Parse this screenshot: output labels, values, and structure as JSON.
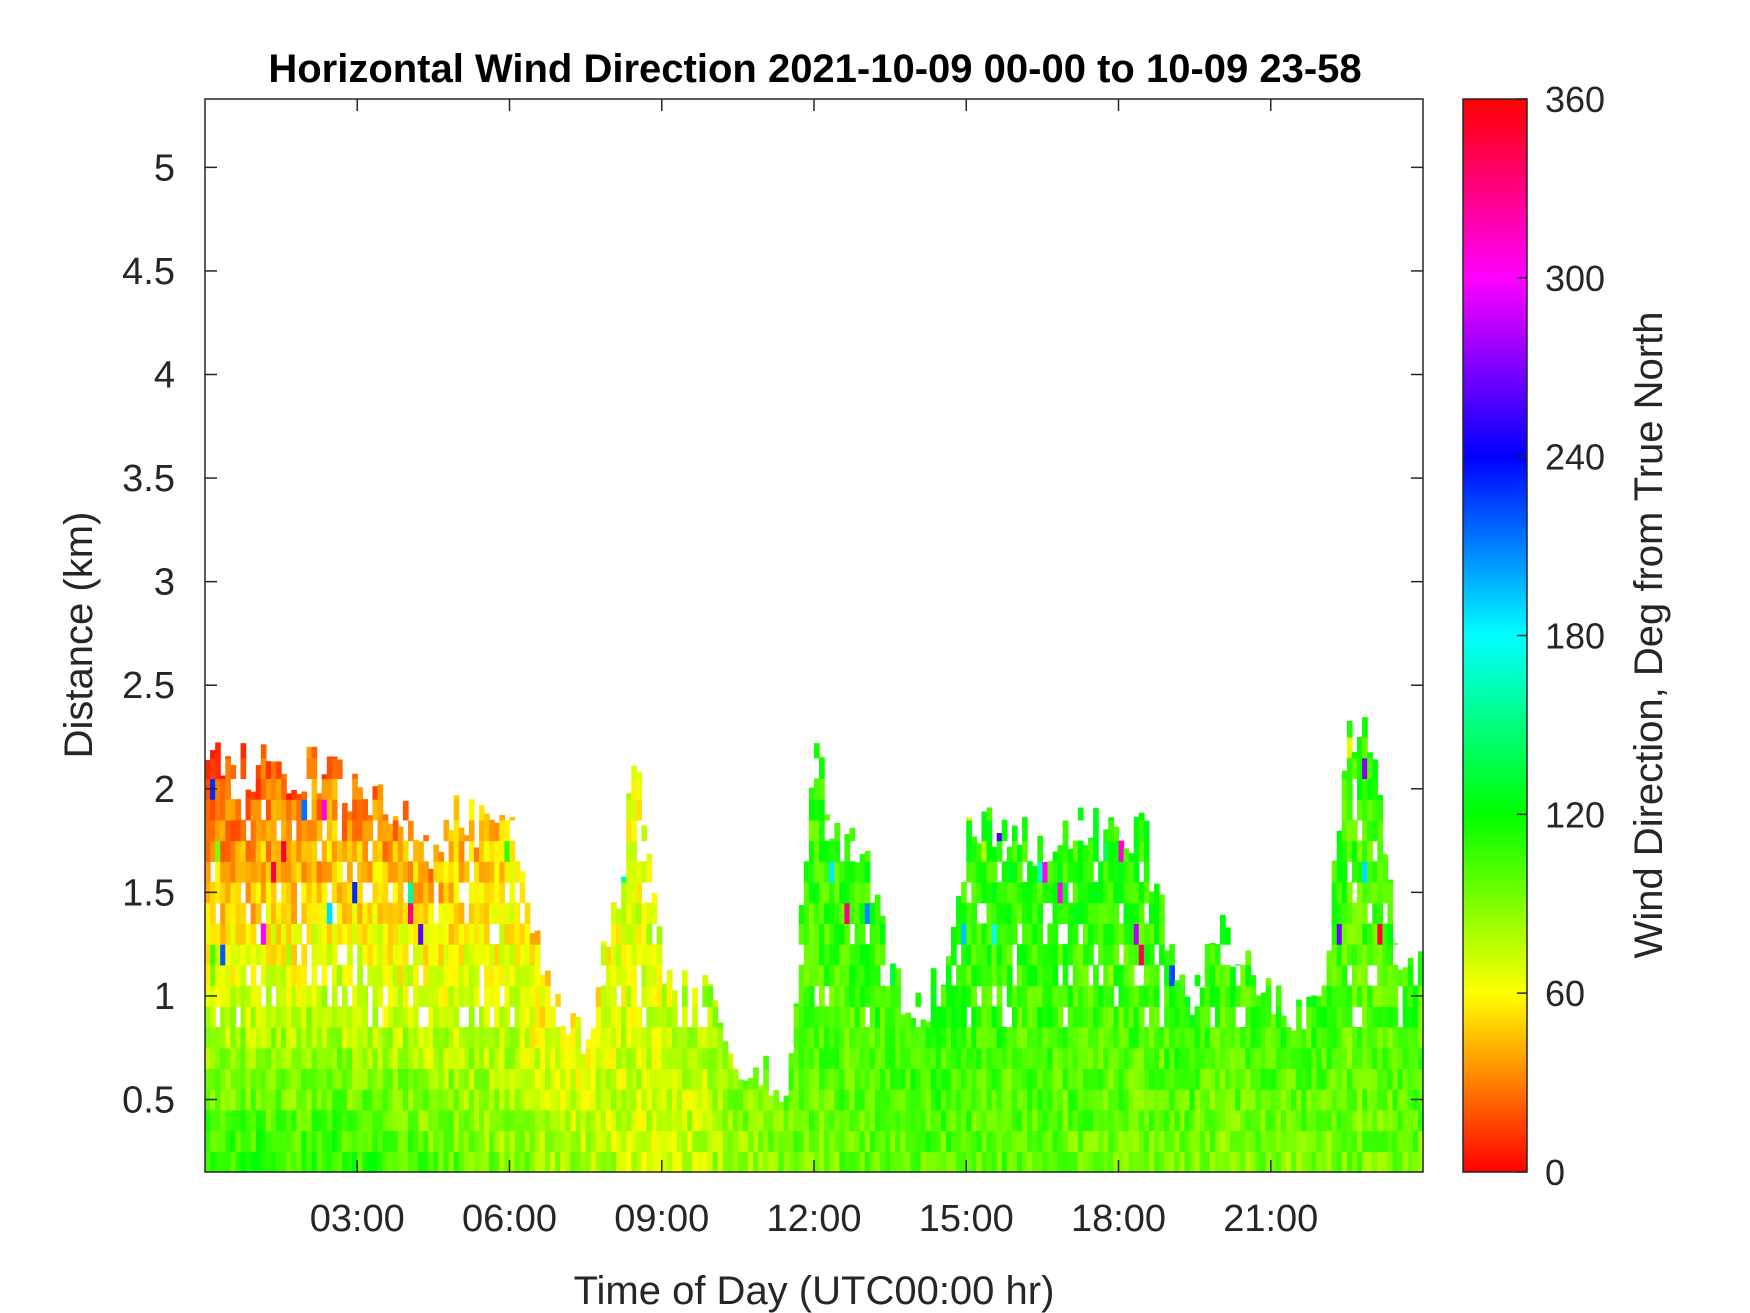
{
  "chart_data": {
    "type": "heatmap",
    "title": "Horizontal Wind Direction 2021-10-09 00-00 to 10-09 23-58",
    "xlabel": "Time of Day (UTC00:00 hr)",
    "ylabel": "Distance (km)",
    "colorbar_label": "Wind Direction, Deg from True North",
    "xlim": [
      0,
      24
    ],
    "ylim": [
      0.15,
      5.33
    ],
    "x_tick_values": [
      3,
      6,
      9,
      12,
      15,
      18,
      21
    ],
    "x_tick_labels": [
      "03:00",
      "06:00",
      "09:00",
      "12:00",
      "15:00",
      "18:00",
      "21:00"
    ],
    "y_tick_values": [
      0.5,
      1,
      1.5,
      2,
      2.5,
      3,
      3.5,
      4,
      4.5,
      5
    ],
    "y_tick_labels": [
      "0.5",
      "1",
      "1.5",
      "2",
      "2.5",
      "3",
      "3.5",
      "4",
      "4.5",
      "5"
    ],
    "clim": [
      0,
      360
    ],
    "colorbar_tick_values": [
      0,
      60,
      120,
      180,
      240,
      300,
      360
    ],
    "colorbar_tick_labels": [
      "0",
      "60",
      "120",
      "180",
      "240",
      "300",
      "360"
    ],
    "colormap": [
      {
        "value": 0,
        "color": "#ff0000"
      },
      {
        "value": 60,
        "color": "#ffff00"
      },
      {
        "value": 120,
        "color": "#00ff00"
      },
      {
        "value": 180,
        "color": "#00ffff"
      },
      {
        "value": 240,
        "color": "#0000ff"
      },
      {
        "value": 300,
        "color": "#ff00ff"
      },
      {
        "value": 360,
        "color": "#ff0000"
      }
    ],
    "data_top_profile": {
      "note_free": true,
      "time_hr": [
        0.0,
        0.7,
        1.0,
        2.0,
        3.0,
        3.5,
        4.0,
        4.5,
        5.0,
        5.5,
        6.0,
        6.7,
        7.0,
        7.5,
        8.0,
        8.5,
        9.0,
        9.5,
        10.0,
        10.5,
        11.0,
        11.5,
        12.0,
        12.5,
        13.0,
        13.5,
        14.0,
        14.5,
        15.0,
        15.5,
        16.0,
        16.5,
        17.0,
        17.5,
        18.0,
        18.5,
        19.0,
        19.5,
        20.0,
        20.5,
        21.0,
        21.5,
        22.0,
        22.5,
        23.0,
        23.5,
        24.0
      ],
      "max_height_km": [
        2.1,
        2.1,
        2.1,
        2.1,
        2.0,
        1.9,
        1.9,
        1.7,
        1.9,
        1.8,
        1.8,
        1.1,
        0.9,
        0.8,
        1.3,
        2.1,
        1.2,
        1.0,
        1.0,
        0.7,
        0.6,
        0.6,
        2.2,
        1.7,
        1.7,
        1.1,
        0.9,
        1.1,
        1.8,
        1.8,
        1.8,
        1.7,
        1.8,
        1.8,
        1.8,
        1.8,
        1.2,
        1.0,
        1.3,
        1.2,
        1.0,
        0.9,
        0.9,
        2.3,
        2.2,
        1.2,
        1.1
      ]
    },
    "data_direction_profile": {
      "time_hr": [
        0.0,
        3.0,
        6.0,
        9.0,
        12.0,
        15.0,
        18.0,
        21.0,
        24.0
      ],
      "near_surface_deg": [
        110,
        110,
        90,
        70,
        95,
        100,
        95,
        90,
        95
      ],
      "upper_deg": [
        10,
        25,
        45,
        70,
        110,
        115,
        115,
        110,
        110
      ]
    }
  }
}
